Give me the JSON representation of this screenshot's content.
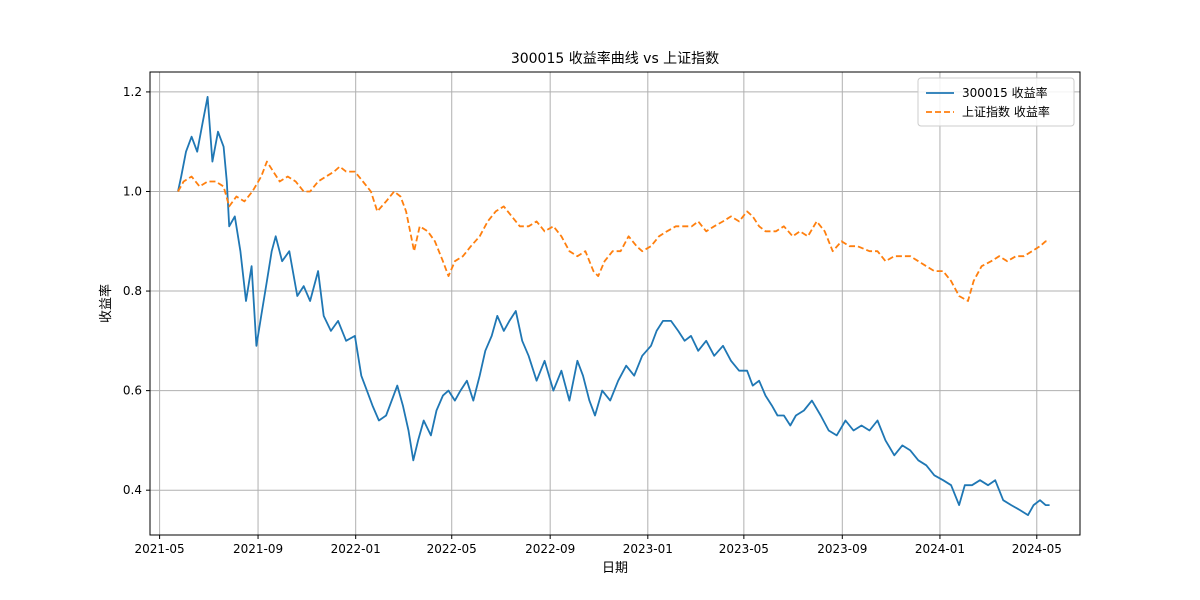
{
  "chart_data": {
    "type": "line",
    "title": "300015 收益率曲线 vs 上证指数",
    "xlabel": "日期",
    "ylabel": "收益率",
    "xlim": [
      "2021-04-19",
      "2024-06-24"
    ],
    "ylim": [
      0.31,
      1.24
    ],
    "x_ticks": [
      "2021-05",
      "2021-09",
      "2022-01",
      "2022-05",
      "2022-09",
      "2023-01",
      "2023-05",
      "2023-09",
      "2024-01",
      "2024-05"
    ],
    "y_ticks": [
      0.4,
      0.6,
      0.8,
      1.0,
      1.2
    ],
    "grid": true,
    "legend": {
      "position": "top-right",
      "entries": [
        "300015 收益率",
        "上证指数 收益率"
      ]
    },
    "series": [
      {
        "name": "300015 收益率",
        "color": "#1f77b4",
        "dash": "solid",
        "points": [
          [
            "2021-05-24",
            1.0
          ],
          [
            "2021-05-28",
            1.03
          ],
          [
            "2021-06-03",
            1.08
          ],
          [
            "2021-06-10",
            1.11
          ],
          [
            "2021-06-17",
            1.08
          ],
          [
            "2021-06-24",
            1.14
          ],
          [
            "2021-06-30",
            1.19
          ],
          [
            "2021-07-06",
            1.06
          ],
          [
            "2021-07-13",
            1.12
          ],
          [
            "2021-07-20",
            1.09
          ],
          [
            "2021-07-24",
            1.02
          ],
          [
            "2021-07-27",
            0.93
          ],
          [
            "2021-08-03",
            0.95
          ],
          [
            "2021-08-10",
            0.88
          ],
          [
            "2021-08-17",
            0.78
          ],
          [
            "2021-08-24",
            0.85
          ],
          [
            "2021-08-30",
            0.69
          ],
          [
            "2021-09-05",
            0.75
          ],
          [
            "2021-09-12",
            0.82
          ],
          [
            "2021-09-18",
            0.88
          ],
          [
            "2021-09-23",
            0.91
          ],
          [
            "2021-10-01",
            0.86
          ],
          [
            "2021-10-10",
            0.88
          ],
          [
            "2021-10-20",
            0.79
          ],
          [
            "2021-10-28",
            0.81
          ],
          [
            "2021-11-05",
            0.78
          ],
          [
            "2021-11-15",
            0.84
          ],
          [
            "2021-11-22",
            0.75
          ],
          [
            "2021-12-01",
            0.72
          ],
          [
            "2021-12-10",
            0.74
          ],
          [
            "2021-12-20",
            0.7
          ],
          [
            "2021-12-31",
            0.71
          ],
          [
            "2022-01-08",
            0.63
          ],
          [
            "2022-01-15",
            0.6
          ],
          [
            "2022-01-22",
            0.57
          ],
          [
            "2022-01-30",
            0.54
          ],
          [
            "2022-02-08",
            0.55
          ],
          [
            "2022-02-15",
            0.58
          ],
          [
            "2022-02-22",
            0.61
          ],
          [
            "2022-03-01",
            0.57
          ],
          [
            "2022-03-08",
            0.52
          ],
          [
            "2022-03-14",
            0.46
          ],
          [
            "2022-03-20",
            0.5
          ],
          [
            "2022-03-27",
            0.54
          ],
          [
            "2022-04-05",
            0.51
          ],
          [
            "2022-04-12",
            0.56
          ],
          [
            "2022-04-20",
            0.59
          ],
          [
            "2022-04-27",
            0.6
          ],
          [
            "2022-05-05",
            0.58
          ],
          [
            "2022-05-12",
            0.6
          ],
          [
            "2022-05-20",
            0.62
          ],
          [
            "2022-05-28",
            0.58
          ],
          [
            "2022-06-05",
            0.63
          ],
          [
            "2022-06-12",
            0.68
          ],
          [
            "2022-06-20",
            0.71
          ],
          [
            "2022-06-27",
            0.75
          ],
          [
            "2022-07-05",
            0.72
          ],
          [
            "2022-07-12",
            0.74
          ],
          [
            "2022-07-20",
            0.76
          ],
          [
            "2022-07-28",
            0.7
          ],
          [
            "2022-08-05",
            0.67
          ],
          [
            "2022-08-15",
            0.62
          ],
          [
            "2022-08-25",
            0.66
          ],
          [
            "2022-09-05",
            0.6
          ],
          [
            "2022-09-15",
            0.64
          ],
          [
            "2022-09-25",
            0.58
          ],
          [
            "2022-10-05",
            0.66
          ],
          [
            "2022-10-12",
            0.63
          ],
          [
            "2022-10-20",
            0.58
          ],
          [
            "2022-10-27",
            0.55
          ],
          [
            "2022-11-05",
            0.6
          ],
          [
            "2022-11-15",
            0.58
          ],
          [
            "2022-11-25",
            0.62
          ],
          [
            "2022-12-05",
            0.65
          ],
          [
            "2022-12-15",
            0.63
          ],
          [
            "2022-12-25",
            0.67
          ],
          [
            "2023-01-05",
            0.69
          ],
          [
            "2023-01-12",
            0.72
          ],
          [
            "2023-01-20",
            0.74
          ],
          [
            "2023-01-30",
            0.74
          ],
          [
            "2023-02-08",
            0.72
          ],
          [
            "2023-02-16",
            0.7
          ],
          [
            "2023-02-24",
            0.71
          ],
          [
            "2023-03-05",
            0.68
          ],
          [
            "2023-03-15",
            0.7
          ],
          [
            "2023-03-25",
            0.67
          ],
          [
            "2023-04-05",
            0.69
          ],
          [
            "2023-04-15",
            0.66
          ],
          [
            "2023-04-25",
            0.64
          ],
          [
            "2023-05-05",
            0.64
          ],
          [
            "2023-05-12",
            0.61
          ],
          [
            "2023-05-20",
            0.62
          ],
          [
            "2023-05-28",
            0.59
          ],
          [
            "2023-06-05",
            0.57
          ],
          [
            "2023-06-12",
            0.55
          ],
          [
            "2023-06-20",
            0.55
          ],
          [
            "2023-06-28",
            0.53
          ],
          [
            "2023-07-05",
            0.55
          ],
          [
            "2023-07-15",
            0.56
          ],
          [
            "2023-07-25",
            0.58
          ],
          [
            "2023-08-05",
            0.55
          ],
          [
            "2023-08-15",
            0.52
          ],
          [
            "2023-08-25",
            0.51
          ],
          [
            "2023-09-05",
            0.54
          ],
          [
            "2023-09-15",
            0.52
          ],
          [
            "2023-09-25",
            0.53
          ],
          [
            "2023-10-05",
            0.52
          ],
          [
            "2023-10-15",
            0.54
          ],
          [
            "2023-10-25",
            0.5
          ],
          [
            "2023-11-05",
            0.47
          ],
          [
            "2023-11-15",
            0.49
          ],
          [
            "2023-11-25",
            0.48
          ],
          [
            "2023-12-05",
            0.46
          ],
          [
            "2023-12-15",
            0.45
          ],
          [
            "2023-12-25",
            0.43
          ],
          [
            "2024-01-05",
            0.42
          ],
          [
            "2024-01-15",
            0.41
          ],
          [
            "2024-01-25",
            0.37
          ],
          [
            "2024-02-01",
            0.41
          ],
          [
            "2024-02-10",
            0.41
          ],
          [
            "2024-02-20",
            0.42
          ],
          [
            "2024-03-01",
            0.41
          ],
          [
            "2024-03-10",
            0.42
          ],
          [
            "2024-03-20",
            0.38
          ],
          [
            "2024-03-30",
            0.37
          ],
          [
            "2024-04-10",
            0.36
          ],
          [
            "2024-04-20",
            0.35
          ],
          [
            "2024-04-27",
            0.37
          ],
          [
            "2024-05-05",
            0.38
          ],
          [
            "2024-05-12",
            0.37
          ],
          [
            "2024-05-17",
            0.37
          ]
        ]
      },
      {
        "name": "上证指数 收益率",
        "color": "#ff7f0e",
        "dash": "dashed",
        "points": [
          [
            "2021-05-24",
            1.0
          ],
          [
            "2021-05-31",
            1.02
          ],
          [
            "2021-06-10",
            1.03
          ],
          [
            "2021-06-20",
            1.01
          ],
          [
            "2021-06-30",
            1.02
          ],
          [
            "2021-07-10",
            1.02
          ],
          [
            "2021-07-20",
            1.01
          ],
          [
            "2021-07-27",
            0.97
          ],
          [
            "2021-08-05",
            0.99
          ],
          [
            "2021-08-15",
            0.98
          ],
          [
            "2021-08-25",
            1.0
          ],
          [
            "2021-09-05",
            1.03
          ],
          [
            "2021-09-12",
            1.06
          ],
          [
            "2021-09-20",
            1.04
          ],
          [
            "2021-09-28",
            1.02
          ],
          [
            "2021-10-08",
            1.03
          ],
          [
            "2021-10-18",
            1.02
          ],
          [
            "2021-10-28",
            1.0
          ],
          [
            "2021-11-05",
            1.0
          ],
          [
            "2021-11-15",
            1.02
          ],
          [
            "2021-11-25",
            1.03
          ],
          [
            "2021-12-05",
            1.04
          ],
          [
            "2021-12-12",
            1.05
          ],
          [
            "2021-12-20",
            1.04
          ],
          [
            "2021-12-31",
            1.04
          ],
          [
            "2022-01-10",
            1.02
          ],
          [
            "2022-01-20",
            1.0
          ],
          [
            "2022-01-28",
            0.96
          ],
          [
            "2022-02-08",
            0.98
          ],
          [
            "2022-02-18",
            1.0
          ],
          [
            "2022-02-26",
            0.99
          ],
          [
            "2022-03-05",
            0.96
          ],
          [
            "2022-03-10",
            0.92
          ],
          [
            "2022-03-15",
            0.88
          ],
          [
            "2022-03-22",
            0.93
          ],
          [
            "2022-04-01",
            0.92
          ],
          [
            "2022-04-10",
            0.9
          ],
          [
            "2022-04-20",
            0.86
          ],
          [
            "2022-04-27",
            0.83
          ],
          [
            "2022-05-05",
            0.86
          ],
          [
            "2022-05-15",
            0.87
          ],
          [
            "2022-05-25",
            0.89
          ],
          [
            "2022-06-05",
            0.91
          ],
          [
            "2022-06-15",
            0.94
          ],
          [
            "2022-06-25",
            0.96
          ],
          [
            "2022-07-05",
            0.97
          ],
          [
            "2022-07-15",
            0.95
          ],
          [
            "2022-07-25",
            0.93
          ],
          [
            "2022-08-05",
            0.93
          ],
          [
            "2022-08-15",
            0.94
          ],
          [
            "2022-08-25",
            0.92
          ],
          [
            "2022-09-05",
            0.93
          ],
          [
            "2022-09-15",
            0.91
          ],
          [
            "2022-09-25",
            0.88
          ],
          [
            "2022-10-05",
            0.87
          ],
          [
            "2022-10-15",
            0.88
          ],
          [
            "2022-10-25",
            0.84
          ],
          [
            "2022-10-31",
            0.83
          ],
          [
            "2022-11-08",
            0.86
          ],
          [
            "2022-11-18",
            0.88
          ],
          [
            "2022-11-28",
            0.88
          ],
          [
            "2022-12-08",
            0.91
          ],
          [
            "2022-12-18",
            0.89
          ],
          [
            "2022-12-25",
            0.88
          ],
          [
            "2023-01-05",
            0.89
          ],
          [
            "2023-01-15",
            0.91
          ],
          [
            "2023-01-25",
            0.92
          ],
          [
            "2023-02-05",
            0.93
          ],
          [
            "2023-02-15",
            0.93
          ],
          [
            "2023-02-25",
            0.93
          ],
          [
            "2023-03-05",
            0.94
          ],
          [
            "2023-03-15",
            0.92
          ],
          [
            "2023-03-25",
            0.93
          ],
          [
            "2023-04-05",
            0.94
          ],
          [
            "2023-04-15",
            0.95
          ],
          [
            "2023-04-25",
            0.94
          ],
          [
            "2023-05-05",
            0.96
          ],
          [
            "2023-05-12",
            0.95
          ],
          [
            "2023-05-20",
            0.93
          ],
          [
            "2023-05-28",
            0.92
          ],
          [
            "2023-06-10",
            0.92
          ],
          [
            "2023-06-20",
            0.93
          ],
          [
            "2023-07-01",
            0.91
          ],
          [
            "2023-07-10",
            0.92
          ],
          [
            "2023-07-20",
            0.91
          ],
          [
            "2023-07-31",
            0.94
          ],
          [
            "2023-08-10",
            0.92
          ],
          [
            "2023-08-20",
            0.88
          ],
          [
            "2023-08-31",
            0.9
          ],
          [
            "2023-09-10",
            0.89
          ],
          [
            "2023-09-20",
            0.89
          ],
          [
            "2023-10-05",
            0.88
          ],
          [
            "2023-10-15",
            0.88
          ],
          [
            "2023-10-25",
            0.86
          ],
          [
            "2023-11-05",
            0.87
          ],
          [
            "2023-11-15",
            0.87
          ],
          [
            "2023-11-25",
            0.87
          ],
          [
            "2023-12-05",
            0.86
          ],
          [
            "2023-12-15",
            0.85
          ],
          [
            "2023-12-25",
            0.84
          ],
          [
            "2024-01-05",
            0.84
          ],
          [
            "2024-01-15",
            0.82
          ],
          [
            "2024-01-25",
            0.79
          ],
          [
            "2024-02-05",
            0.78
          ],
          [
            "2024-02-12",
            0.82
          ],
          [
            "2024-02-22",
            0.85
          ],
          [
            "2024-03-05",
            0.86
          ],
          [
            "2024-03-15",
            0.87
          ],
          [
            "2024-03-25",
            0.86
          ],
          [
            "2024-04-05",
            0.87
          ],
          [
            "2024-04-15",
            0.87
          ],
          [
            "2024-04-25",
            0.88
          ],
          [
            "2024-05-05",
            0.89
          ],
          [
            "2024-05-12",
            0.9
          ],
          [
            "2024-05-17",
            0.9
          ]
        ]
      }
    ]
  }
}
